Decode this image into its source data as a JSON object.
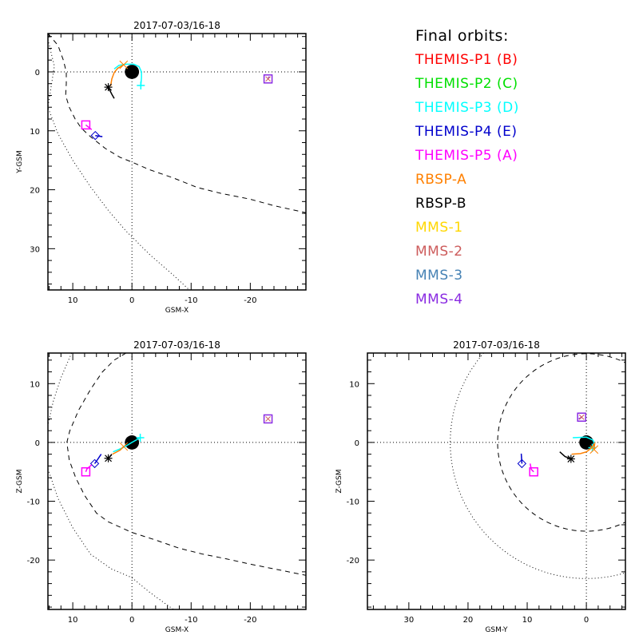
{
  "legend": {
    "title": "Final orbits:",
    "items": [
      {
        "label": "THEMIS-P1 (B)",
        "color": "#ff0000"
      },
      {
        "label": "THEMIS-P2 (C)",
        "color": "#00e000"
      },
      {
        "label": "THEMIS-P3 (D)",
        "color": "#00ffff"
      },
      {
        "label": "THEMIS-P4 (E)",
        "color": "#0000cc"
      },
      {
        "label": "THEMIS-P5 (A)",
        "color": "#ff00ff"
      },
      {
        "label": "RBSP-A",
        "color": "#ff8000"
      },
      {
        "label": "RBSP-B",
        "color": "#000000"
      },
      {
        "label": "MMS-1",
        "color": "#ffd700"
      },
      {
        "label": "MMS-2",
        "color": "#cd5c5c"
      },
      {
        "label": "MMS-3",
        "color": "#4682b4"
      },
      {
        "label": "MMS-4",
        "color": "#8a2be2"
      }
    ]
  },
  "chart_data": [
    {
      "type": "line",
      "title": "2017-07-03/16-18",
      "xlabel": "GSM-X",
      "ylabel": "Y-GSM",
      "xlim": [
        14.2,
        -29.4
      ],
      "ylim": [
        -6.5,
        37.0
      ],
      "y_inverted": true,
      "xticks": [
        10,
        0,
        -10,
        -20
      ],
      "xtick_labels": [
        "10",
        "0",
        "-10",
        "-20"
      ],
      "yticks": [
        0,
        10,
        20,
        30
      ],
      "ytick_labels": [
        "0",
        "10",
        "20",
        "30"
      ],
      "minor_step": 2,
      "earth": {
        "x": 0,
        "y": 0,
        "r": 1.6
      },
      "reference_lines": [
        {
          "name": "magnetopause",
          "style": "dashed",
          "points": [
            [
              14.2,
              -6.5
            ],
            [
              12.5,
              -4.5
            ],
            [
              11.6,
              -2
            ],
            [
              11.1,
              0
            ],
            [
              11.1,
              2
            ],
            [
              11.2,
              4
            ],
            [
              10.6,
              6
            ],
            [
              9.6,
              8
            ],
            [
              8.6,
              9.5
            ],
            [
              7,
              11
            ],
            [
              4.5,
              13
            ],
            [
              2,
              14.5
            ],
            [
              0,
              15.3
            ],
            [
              -3,
              16.6
            ],
            [
              -7,
              18
            ],
            [
              -11,
              19.6
            ],
            [
              -15,
              20.6
            ],
            [
              -20,
              21.6
            ],
            [
              -24,
              22.7
            ],
            [
              -29.4,
              23.9
            ]
          ]
        },
        {
          "name": "bow-shock",
          "style": "dotted",
          "points": [
            [
              14.2,
              -5.5
            ],
            [
              13.6,
              -3
            ],
            [
              13.1,
              -1
            ],
            [
              14.2,
              6
            ],
            [
              12.5,
              10.5
            ],
            [
              10,
              15
            ],
            [
              7,
              19.5
            ],
            [
              4,
              23.5
            ],
            [
              1,
              27
            ],
            [
              -3,
              31
            ],
            [
              -7,
              34.5
            ],
            [
              -9.7,
              37
            ]
          ]
        }
      ],
      "series": [
        {
          "name": "THEMIS-P3 (D)",
          "color": "#00ffff",
          "points": [
            [
              3,
              -0.5
            ],
            [
              2.2,
              -1.1
            ],
            [
              1,
              -1.3
            ],
            [
              -0.3,
              -1.3
            ],
            [
              -1.2,
              -0.9
            ],
            [
              -1.6,
              0
            ],
            [
              -1.6,
              1
            ],
            [
              -1.5,
              2.3
            ]
          ],
          "marker": "plus"
        },
        {
          "name": "RBSP-A",
          "color": "#ff8000",
          "points": [
            [
              3.6,
              2.4
            ],
            [
              3.4,
              1.2
            ],
            [
              3,
              0.1
            ],
            [
              2.4,
              -0.6
            ],
            [
              1.4,
              -1.2
            ]
          ],
          "marker": "x"
        },
        {
          "name": "RBSP-B",
          "color": "#000000",
          "points": [
            [
              3,
              4.5
            ],
            [
              3.4,
              3.8
            ],
            [
              3.8,
              3
            ],
            [
              4,
              2.6
            ]
          ],
          "marker": "asterisk"
        },
        {
          "name": "THEMIS-P4 (E)",
          "color": "#0000cc",
          "points": [
            [
              5,
              11
            ],
            [
              6.2,
              10.8
            ]
          ],
          "marker": "diamond"
        },
        {
          "name": "THEMIS-P5 (A)",
          "color": "#ff00ff",
          "points": [
            [
              6.8,
              9.8
            ],
            [
              7.8,
              9
            ]
          ],
          "marker": "square"
        },
        {
          "name": "MMS-4",
          "color": "#8a2be2",
          "points": [
            [
              -23.2,
              0.8
            ],
            [
              -23,
              1.2
            ]
          ],
          "marker": "square"
        }
      ]
    },
    {
      "type": "line",
      "title": "2017-07-03/16-18",
      "xlabel": "GSM-X",
      "ylabel": "Z-GSM",
      "xlim": [
        14.2,
        -29.4
      ],
      "ylim": [
        15.2,
        -28.4
      ],
      "y_inverted": false,
      "xticks": [
        10,
        0,
        -10,
        -20
      ],
      "xtick_labels": [
        "10",
        "0",
        "-10",
        "-20"
      ],
      "yticks": [
        10,
        0,
        -10,
        -20
      ],
      "ytick_labels": [
        "10",
        "0",
        "-10",
        "-20"
      ],
      "minor_step": 2,
      "earth": {
        "x": 0,
        "y": 0,
        "r": 1.6
      },
      "reference_lines": [
        {
          "name": "magnetopause",
          "style": "dashed",
          "points": [
            [
              1,
              15.2
            ],
            [
              3,
              14
            ],
            [
              5,
              12
            ],
            [
              7,
              9
            ],
            [
              9,
              5.5
            ],
            [
              10.5,
              2
            ],
            [
              11,
              0
            ],
            [
              10.6,
              -3
            ],
            [
              9.5,
              -6
            ],
            [
              8,
              -9
            ],
            [
              6,
              -12
            ],
            [
              4,
              -13.5
            ],
            [
              0,
              -15.3
            ],
            [
              -4,
              -16.6
            ],
            [
              -8,
              -18
            ],
            [
              -12,
              -19
            ],
            [
              -16,
              -19.8
            ],
            [
              -20,
              -20.7
            ],
            [
              -24,
              -21.5
            ],
            [
              -29.4,
              -22.6
            ]
          ]
        },
        {
          "name": "bow-shock",
          "style": "dotted",
          "points": [
            [
              10.2,
              15.2
            ],
            [
              12,
              11
            ],
            [
              13.3,
              7
            ],
            [
              14.2,
              3
            ]
          ]
        },
        {
          "name": "bow-shock-lower",
          "style": "dotted",
          "points": [
            [
              14.2,
              -4.5
            ],
            [
              12.5,
              -9.5
            ],
            [
              10,
              -14.5
            ],
            [
              7,
              -19
            ],
            [
              3.5,
              -21.5
            ],
            [
              0,
              -23
            ],
            [
              -3,
              -25.5
            ],
            [
              -7,
              -28.4
            ]
          ]
        }
      ],
      "series": [
        {
          "name": "THEMIS-P3 (D)",
          "color": "#00ffff",
          "points": [
            [
              3.2,
              -1.6
            ],
            [
              1.5,
              -0.9
            ],
            [
              0,
              0
            ],
            [
              -1.4,
              0.8
            ]
          ],
          "marker": "plus"
        },
        {
          "name": "RBSP-A",
          "color": "#ff8000",
          "points": [
            [
              3.3,
              -2
            ],
            [
              2,
              -1.3
            ],
            [
              1.4,
              -0.7
            ]
          ],
          "marker": "x"
        },
        {
          "name": "RBSP-B",
          "color": "#000000",
          "points": [
            [
              3.4,
              -2
            ],
            [
              4,
              -2.7
            ]
          ],
          "marker": "asterisk"
        },
        {
          "name": "THEMIS-P4 (E)",
          "color": "#0000cc",
          "points": [
            [
              5.2,
              -2
            ],
            [
              6,
              -3.2
            ],
            [
              6.3,
              -3.6
            ]
          ],
          "marker": "diamond"
        },
        {
          "name": "THEMIS-P5 (A)",
          "color": "#ff00ff",
          "points": [
            [
              6.8,
              -3.8
            ],
            [
              7.6,
              -4.5
            ],
            [
              7.8,
              -5
            ]
          ],
          "marker": "square"
        },
        {
          "name": "MMS-4",
          "color": "#8a2be2",
          "points": [
            [
              -23,
              4
            ]
          ],
          "marker": "square"
        }
      ]
    },
    {
      "type": "line",
      "title": "2017-07-03/16-18",
      "xlabel": "GSM-Y",
      "ylabel": "Z-GSM",
      "xlim": [
        37.0,
        -6.6
      ],
      "ylim": [
        15.2,
        -28.4
      ],
      "y_inverted": false,
      "xticks": [
        30,
        20,
        10,
        0
      ],
      "xtick_labels": [
        "30",
        "20",
        "10",
        "0"
      ],
      "yticks": [
        10,
        0,
        -10,
        -20
      ],
      "ytick_labels": [
        "10",
        "0",
        "-10",
        "-20"
      ],
      "minor_step": 2,
      "earth": {
        "x": 0,
        "y": 0,
        "r": 1.6
      },
      "reference_lines": [
        {
          "name": "magnetopause",
          "style": "dashed",
          "circle": {
            "r": 15
          }
        },
        {
          "name": "bow-shock",
          "style": "dotted",
          "circle": {
            "r": 23
          }
        }
      ],
      "series": [
        {
          "name": "THEMIS-P3 (D)",
          "color": "#00ffff",
          "points": [
            [
              2.3,
              0.8
            ],
            [
              0,
              0.9
            ],
            [
              -1.1,
              0.4
            ],
            [
              -1.4,
              -0.3
            ],
            [
              -1,
              -0.9
            ]
          ],
          "marker": "plus"
        },
        {
          "name": "RBSP-A",
          "color": "#ff8000",
          "points": [
            [
              2.5,
              -2
            ],
            [
              1,
              -1.9
            ],
            [
              0,
              -1.6
            ],
            [
              -0.8,
              -1
            ],
            [
              -1.4,
              -0.2
            ],
            [
              -1.3,
              -1.2
            ]
          ],
          "marker": "x"
        },
        {
          "name": "RBSP-B",
          "color": "#000000",
          "points": [
            [
              4.5,
              -1.6
            ],
            [
              3.6,
              -2.4
            ],
            [
              2.6,
              -2.8
            ]
          ],
          "marker": "asterisk"
        },
        {
          "name": "THEMIS-P4 (E)",
          "color": "#0000cc",
          "points": [
            [
              11,
              -1.9
            ],
            [
              10.9,
              -3.6
            ]
          ],
          "marker": "diamond"
        },
        {
          "name": "THEMIS-P5 (A)",
          "color": "#ff00ff",
          "points": [
            [
              9.5,
              -3.6
            ],
            [
              9.3,
              -4.6
            ],
            [
              8.9,
              -5
            ]
          ],
          "marker": "square"
        },
        {
          "name": "MMS-4",
          "color": "#8a2be2",
          "points": [
            [
              1.3,
              4
            ],
            [
              0.8,
              4.3
            ]
          ],
          "marker": "square"
        }
      ]
    }
  ]
}
